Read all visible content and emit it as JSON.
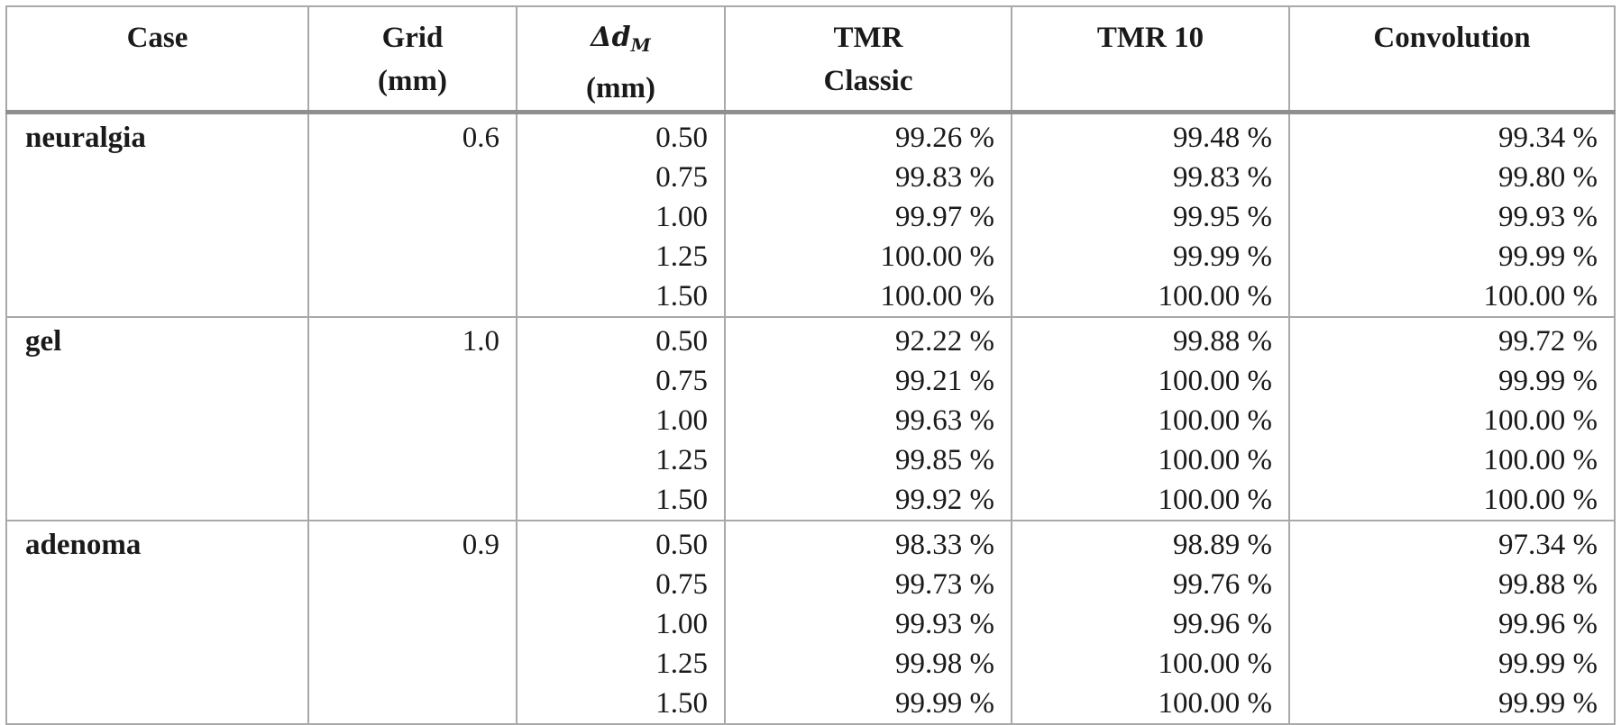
{
  "table": {
    "headers": {
      "case": "Case",
      "grid_line1": "Grid",
      "grid_line2": "(mm)",
      "dm_symbol": "Δd",
      "dm_subscript": "M",
      "dm_line2": "(mm)",
      "tmr_classic_line1": "TMR",
      "tmr_classic_line2": "Classic",
      "tmr10": "TMR 10",
      "convolution": "Convolution"
    },
    "groups": [
      {
        "case": "neuralgia",
        "grid": "0.6",
        "rows": [
          {
            "dm": "0.50",
            "tmr_classic": "99.26 %",
            "tmr10": "99.48 %",
            "convolution": "99.34 %"
          },
          {
            "dm": "0.75",
            "tmr_classic": "99.83 %",
            "tmr10": "99.83 %",
            "convolution": "99.80 %"
          },
          {
            "dm": "1.00",
            "tmr_classic": "99.97 %",
            "tmr10": "99.95 %",
            "convolution": "99.93 %"
          },
          {
            "dm": "1.25",
            "tmr_classic": "100.00 %",
            "tmr10": "99.99 %",
            "convolution": "99.99 %"
          },
          {
            "dm": "1.50",
            "tmr_classic": "100.00 %",
            "tmr10": "100.00 %",
            "convolution": "100.00 %"
          }
        ]
      },
      {
        "case": "gel",
        "grid": "1.0",
        "rows": [
          {
            "dm": "0.50",
            "tmr_classic": "92.22 %",
            "tmr10": "99.88 %",
            "convolution": "99.72 %"
          },
          {
            "dm": "0.75",
            "tmr_classic": "99.21 %",
            "tmr10": "100.00 %",
            "convolution": "99.99 %"
          },
          {
            "dm": "1.00",
            "tmr_classic": "99.63 %",
            "tmr10": "100.00 %",
            "convolution": "100.00 %"
          },
          {
            "dm": "1.25",
            "tmr_classic": "99.85 %",
            "tmr10": "100.00 %",
            "convolution": "100.00 %"
          },
          {
            "dm": "1.50",
            "tmr_classic": "99.92 %",
            "tmr10": "100.00 %",
            "convolution": "100.00 %"
          }
        ]
      },
      {
        "case": "adenoma",
        "grid": "0.9",
        "rows": [
          {
            "dm": "0.50",
            "tmr_classic": "98.33 %",
            "tmr10": "98.89 %",
            "convolution": "97.34 %"
          },
          {
            "dm": "0.75",
            "tmr_classic": "99.73 %",
            "tmr10": "99.76 %",
            "convolution": "99.88 %"
          },
          {
            "dm": "1.00",
            "tmr_classic": "99.93 %",
            "tmr10": "99.96 %",
            "convolution": "99.96 %"
          },
          {
            "dm": "1.25",
            "tmr_classic": "99.98 %",
            "tmr10": "100.00 %",
            "convolution": "99.99 %"
          },
          {
            "dm": "1.50",
            "tmr_classic": "99.99 %",
            "tmr10": "100.00 %",
            "convolution": "99.99 %"
          }
        ]
      }
    ]
  }
}
